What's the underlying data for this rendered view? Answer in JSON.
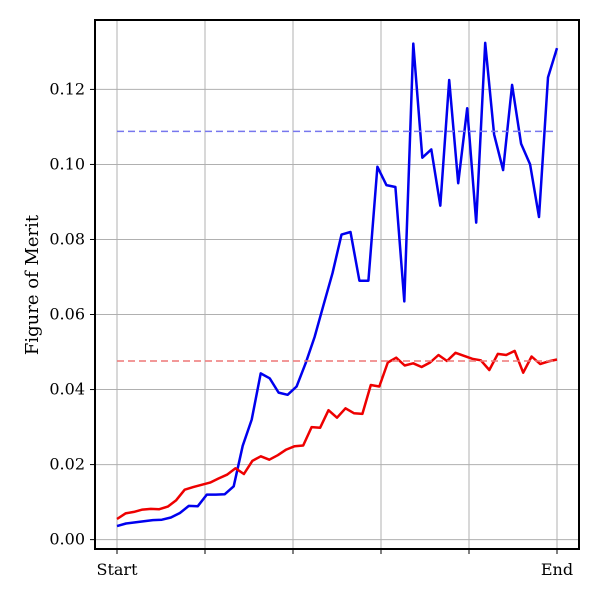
{
  "chart_data": {
    "type": "line",
    "title": "",
    "xlabel": "",
    "ylabel": "Figure of Merit",
    "x_tick_labels": [
      "Start",
      "End"
    ],
    "x_ticks_unlabeled": 4,
    "ylim": [
      -0.0025,
      0.1385
    ],
    "yticks": [
      0.0,
      0.02,
      0.04,
      0.06,
      0.08,
      0.1,
      0.12
    ],
    "ytick_labels": [
      "0.00",
      "0.02",
      "0.04",
      "0.06",
      "0.08",
      "0.10",
      "0.12"
    ],
    "grid": true,
    "legend": "none",
    "series": [
      {
        "color": "#0000ee",
        "style": "solid",
        "values": [
          0.0036,
          0.0043,
          0.0046,
          0.0049,
          0.0052,
          0.0053,
          0.0059,
          0.0071,
          0.009,
          0.0089,
          0.012,
          0.012,
          0.0121,
          0.0142,
          0.025,
          0.032,
          0.0443,
          0.043,
          0.0392,
          0.0386,
          0.0408,
          0.047,
          0.054,
          0.0625,
          0.071,
          0.0813,
          0.082,
          0.069,
          0.069,
          0.0994,
          0.0945,
          0.094,
          0.0635,
          0.1322,
          0.1018,
          0.104,
          0.089,
          0.1225,
          0.095,
          0.115,
          0.0845,
          0.1324,
          0.108,
          0.0985,
          0.1212,
          0.1055,
          0.1,
          0.086,
          0.1232,
          0.131
        ]
      },
      {
        "color": "#ee0000",
        "style": "solid",
        "values": [
          0.0055,
          0.007,
          0.0074,
          0.008,
          0.0082,
          0.0081,
          0.0088,
          0.0105,
          0.0133,
          0.014,
          0.0146,
          0.0152,
          0.0163,
          0.0173,
          0.019,
          0.0175,
          0.021,
          0.0222,
          0.0213,
          0.0225,
          0.024,
          0.0249,
          0.0251,
          0.03,
          0.0298,
          0.0345,
          0.0325,
          0.035,
          0.0337,
          0.0335,
          0.0412,
          0.0408,
          0.0472,
          0.0485,
          0.0464,
          0.047,
          0.046,
          0.0472,
          0.0492,
          0.0476,
          0.0498,
          0.049,
          0.0482,
          0.0478,
          0.0452,
          0.0495,
          0.0492,
          0.0503,
          0.0445,
          0.0488,
          0.0468,
          0.0475,
          0.048
        ]
      },
      {
        "color": "#7777ee",
        "style": "dashed",
        "values": [
          0.1088,
          0.1088
        ]
      },
      {
        "color": "#ee7777",
        "style": "dashed",
        "values": [
          0.0476,
          0.0476
        ]
      }
    ]
  }
}
